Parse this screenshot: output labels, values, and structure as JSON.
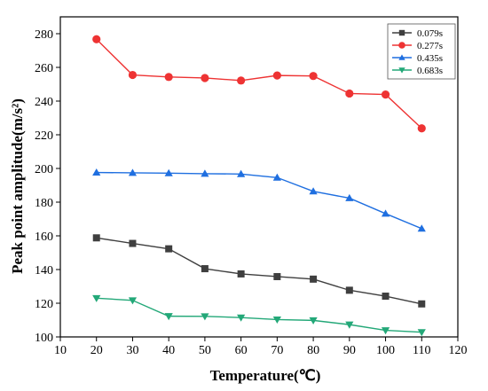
{
  "chart_data": {
    "type": "line",
    "title": "",
    "xlabel": "Temperature(℃)",
    "ylabel": "Peak point amplitude(m/s²)",
    "xlim": [
      10,
      120
    ],
    "ylim": [
      100,
      290
    ],
    "x_ticks": [
      "10",
      "20",
      "30",
      "40",
      "50",
      "60",
      "70",
      "80",
      "90",
      "100",
      "110",
      "120"
    ],
    "y_ticks": [
      "100",
      "120",
      "140",
      "160",
      "180",
      "200",
      "220",
      "240",
      "260",
      "280"
    ],
    "x": [
      20,
      30,
      40,
      50,
      60,
      70,
      80,
      90,
      100,
      110
    ],
    "grid": false,
    "legend_position": "top-right",
    "series": [
      {
        "name": "0.079s",
        "color": "#3f3f3f",
        "marker": "square",
        "values": [
          158.8,
          155.5,
          152.3,
          140.5,
          137.4,
          135.8,
          134.3,
          127.7,
          124.2,
          119.6
        ]
      },
      {
        "name": "0.277s",
        "color": "#ee3333",
        "marker": "circle",
        "values": [
          276.7,
          255.5,
          254.3,
          253.7,
          252.2,
          255.2,
          254.9,
          244.5,
          243.9,
          223.8
        ]
      },
      {
        "name": "0.435s",
        "color": "#1f6fe0",
        "marker": "triangle-up",
        "values": [
          197.6,
          197.4,
          197.2,
          196.9,
          196.7,
          194.6,
          186.4,
          182.4,
          173.2,
          164.3
        ]
      },
      {
        "name": "0.683s",
        "color": "#23a878",
        "marker": "triangle-down",
        "values": [
          123.0,
          121.7,
          112.3,
          112.2,
          111.5,
          110.3,
          109.8,
          107.3,
          103.9,
          102.8
        ]
      }
    ]
  }
}
